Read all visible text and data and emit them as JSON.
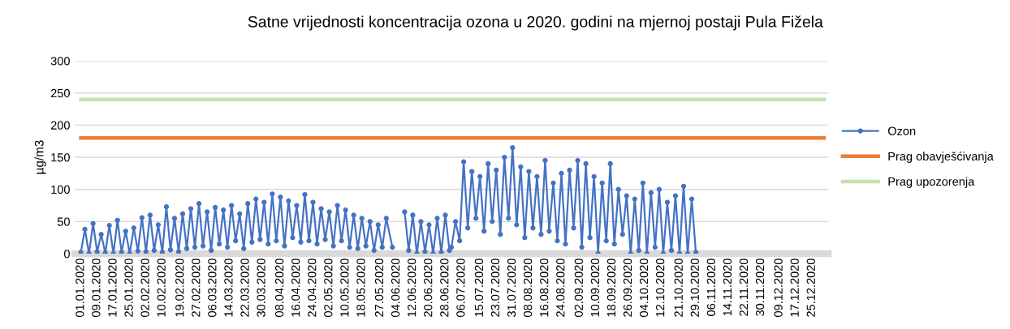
{
  "chart_data": {
    "type": "line",
    "title": "Satne vrijednosti koncentracija ozona u 2020. godini na mjernoj postaji Pula Fižela",
    "ylabel": "µg/m3",
    "x": [
      "2020-01-01",
      "2020-01-03",
      "2020-01-05",
      "2020-01-07",
      "2020-01-09",
      "2020-01-11",
      "2020-01-13",
      "2020-01-15",
      "2020-01-17",
      "2020-01-19",
      "2020-01-21",
      "2020-01-23",
      "2020-01-25",
      "2020-01-27",
      "2020-01-29",
      "2020-01-31",
      "2020-02-02",
      "2020-02-04",
      "2020-02-06",
      "2020-02-08",
      "2020-02-10",
      "2020-02-12",
      "2020-02-14",
      "2020-02-16",
      "2020-02-18",
      "2020-02-20",
      "2020-02-22",
      "2020-02-24",
      "2020-02-26",
      "2020-02-28",
      "2020-03-01",
      "2020-03-03",
      "2020-03-05",
      "2020-03-07",
      "2020-03-09",
      "2020-03-11",
      "2020-03-13",
      "2020-03-15",
      "2020-03-17",
      "2020-03-19",
      "2020-03-21",
      "2020-03-23",
      "2020-03-25",
      "2020-03-27",
      "2020-03-29",
      "2020-03-31",
      "2020-04-02",
      "2020-04-04",
      "2020-04-06",
      "2020-04-08",
      "2020-04-10",
      "2020-04-12",
      "2020-04-14",
      "2020-04-16",
      "2020-04-18",
      "2020-04-20",
      "2020-04-22",
      "2020-04-24",
      "2020-04-26",
      "2020-04-28",
      "2020-04-30",
      "2020-05-02",
      "2020-05-04",
      "2020-05-06",
      "2020-05-08",
      "2020-05-10",
      "2020-05-12",
      "2020-05-14",
      "2020-05-16",
      "2020-05-18",
      "2020-05-20",
      "2020-05-22",
      "2020-05-24",
      "2020-05-26",
      "2020-05-28",
      "2020-05-30",
      "2020-06-02",
      "2020-06-04",
      "2020-06-06",
      "2020-06-08",
      "2020-06-10",
      "2020-06-12",
      "2020-06-14",
      "2020-06-16",
      "2020-06-18",
      "2020-06-20",
      "2020-06-22",
      "2020-06-24",
      "2020-06-26",
      "2020-06-28",
      "2020-06-30",
      "2020-07-01",
      "2020-07-03",
      "2020-07-05",
      "2020-07-07",
      "2020-07-09",
      "2020-07-11",
      "2020-07-13",
      "2020-07-15",
      "2020-07-17",
      "2020-07-19",
      "2020-07-21",
      "2020-07-23",
      "2020-07-25",
      "2020-07-27",
      "2020-07-29",
      "2020-07-31",
      "2020-08-02",
      "2020-08-04",
      "2020-08-06",
      "2020-08-08",
      "2020-08-10",
      "2020-08-12",
      "2020-08-14",
      "2020-08-16",
      "2020-08-18",
      "2020-08-20",
      "2020-08-22",
      "2020-08-24",
      "2020-08-26",
      "2020-08-28",
      "2020-08-30",
      "2020-09-01",
      "2020-09-03",
      "2020-09-05",
      "2020-09-07",
      "2020-09-09",
      "2020-09-11",
      "2020-09-13",
      "2020-09-15",
      "2020-09-17",
      "2020-09-19",
      "2020-09-21",
      "2020-09-23",
      "2020-09-25",
      "2020-09-27",
      "2020-09-29",
      "2020-10-01",
      "2020-10-03",
      "2020-10-05",
      "2020-10-07",
      "2020-10-09",
      "2020-10-11",
      "2020-10-13",
      "2020-10-15",
      "2020-10-17",
      "2020-10-19",
      "2020-10-21",
      "2020-10-23",
      "2020-10-25",
      "2020-10-27",
      "2020-10-29"
    ],
    "series": [
      {
        "name": "Ozon",
        "color": "#4472c4",
        "marker": "circle",
        "values": [
          2,
          38,
          0,
          47,
          3,
          30,
          1,
          44,
          0,
          52,
          2,
          35,
          0,
          40,
          4,
          56,
          3,
          60,
          5,
          45,
          2,
          73,
          6,
          55,
          3,
          62,
          8,
          70,
          10,
          78,
          12,
          65,
          5,
          72,
          15,
          68,
          10,
          75,
          20,
          62,
          8,
          78,
          18,
          85,
          22,
          80,
          15,
          93,
          20,
          88,
          12,
          82,
          25,
          75,
          18,
          92,
          20,
          80,
          15,
          70,
          22,
          65,
          12,
          75,
          20,
          68,
          10,
          60,
          8,
          55,
          12,
          50,
          5,
          45,
          10,
          55,
          10,
          null,
          null,
          65,
          5,
          60,
          0,
          50,
          3,
          45,
          0,
          55,
          2,
          60,
          5,
          10,
          50,
          20,
          143,
          40,
          128,
          55,
          120,
          35,
          140,
          50,
          130,
          30,
          150,
          55,
          165,
          45,
          135,
          25,
          128,
          40,
          120,
          30,
          145,
          35,
          110,
          20,
          125,
          15,
          130,
          40,
          145,
          10,
          140,
          25,
          120,
          0,
          110,
          20,
          140,
          15,
          100,
          30,
          90,
          0,
          85,
          5,
          110,
          0,
          95,
          10,
          100,
          0,
          80,
          5,
          90,
          0,
          105,
          0,
          85,
          2
        ]
      },
      {
        "name": "Prag obavješćivanja",
        "color": "#ed7d31",
        "type": "line",
        "marker": "none",
        "x": [
          "2020-01-01",
          "2020-12-31"
        ],
        "values": [
          180,
          180
        ]
      },
      {
        "name": "Prag upozorenja",
        "color": "#c5e0b4",
        "type": "line",
        "marker": "none",
        "x": [
          "2020-01-01",
          "2020-12-31"
        ],
        "values": [
          240,
          240
        ]
      }
    ],
    "xlim": [
      "2019-12-29",
      "2021-01-02"
    ],
    "xticks": [
      {
        "value": "2020-01-01",
        "label": "01.01.2020"
      },
      {
        "value": "2020-01-09",
        "label": "09.01.2020"
      },
      {
        "value": "2020-01-17",
        "label": "17.01.2020"
      },
      {
        "value": "2020-01-25",
        "label": "25.01.2020"
      },
      {
        "value": "2020-02-02",
        "label": "02.02.2020"
      },
      {
        "value": "2020-02-10",
        "label": "10.02.2020"
      },
      {
        "value": "2020-02-19",
        "label": "19.02.2020"
      },
      {
        "value": "2020-02-27",
        "label": "27.02.2020"
      },
      {
        "value": "2020-03-06",
        "label": "06.03.2020"
      },
      {
        "value": "2020-03-14",
        "label": "14.03.2020"
      },
      {
        "value": "2020-03-22",
        "label": "22.03.2020"
      },
      {
        "value": "2020-03-30",
        "label": "30.03.2020"
      },
      {
        "value": "2020-04-08",
        "label": "08.04.2020"
      },
      {
        "value": "2020-04-16",
        "label": "16.04.2020"
      },
      {
        "value": "2020-04-24",
        "label": "24.04.2020"
      },
      {
        "value": "2020-05-02",
        "label": "02.05.2020"
      },
      {
        "value": "2020-05-10",
        "label": "10.05.2020"
      },
      {
        "value": "2020-05-18",
        "label": "18.05.2020"
      },
      {
        "value": "2020-05-27",
        "label": "27.05.2020"
      },
      {
        "value": "2020-06-04",
        "label": "04.06.2020"
      },
      {
        "value": "2020-06-12",
        "label": "12.06.2020"
      },
      {
        "value": "2020-06-20",
        "label": "20.06.2020"
      },
      {
        "value": "2020-06-28",
        "label": "28.06.2020"
      },
      {
        "value": "2020-07-06",
        "label": "06.07.2020"
      },
      {
        "value": "2020-07-15",
        "label": "15.07.2020"
      },
      {
        "value": "2020-07-23",
        "label": "23.07.2020"
      },
      {
        "value": "2020-07-31",
        "label": "31.07.2020"
      },
      {
        "value": "2020-08-08",
        "label": "08.08.2020"
      },
      {
        "value": "2020-08-16",
        "label": "16.08.2020"
      },
      {
        "value": "2020-08-24",
        "label": "24.08.2020"
      },
      {
        "value": "2020-09-02",
        "label": "02.09.2020"
      },
      {
        "value": "2020-09-10",
        "label": "10.09.2020"
      },
      {
        "value": "2020-09-18",
        "label": "18.09.2020"
      },
      {
        "value": "2020-09-26",
        "label": "26.09.2020"
      },
      {
        "value": "2020-10-04",
        "label": "04.10.2020"
      },
      {
        "value": "2020-10-12",
        "label": "12.10.2020"
      },
      {
        "value": "2020-10-21",
        "label": "21.10.2020"
      },
      {
        "value": "2020-10-29",
        "label": "29.10.2020"
      },
      {
        "value": "2020-11-06",
        "label": "06.11.2020"
      },
      {
        "value": "2020-11-14",
        "label": "14.11.2020"
      },
      {
        "value": "2020-11-22",
        "label": "22.11.2020"
      },
      {
        "value": "2020-11-30",
        "label": "30.11.2020"
      },
      {
        "value": "2020-12-09",
        "label": "09.12.2020"
      },
      {
        "value": "2020-12-17",
        "label": "17.12.2020"
      },
      {
        "value": "2020-12-25",
        "label": "25.12.2020"
      }
    ],
    "ylim": [
      0,
      300
    ],
    "yticks": [
      0,
      50,
      100,
      150,
      200,
      250,
      300
    ],
    "grid": "y",
    "legend": "right",
    "line_style": "solid"
  }
}
